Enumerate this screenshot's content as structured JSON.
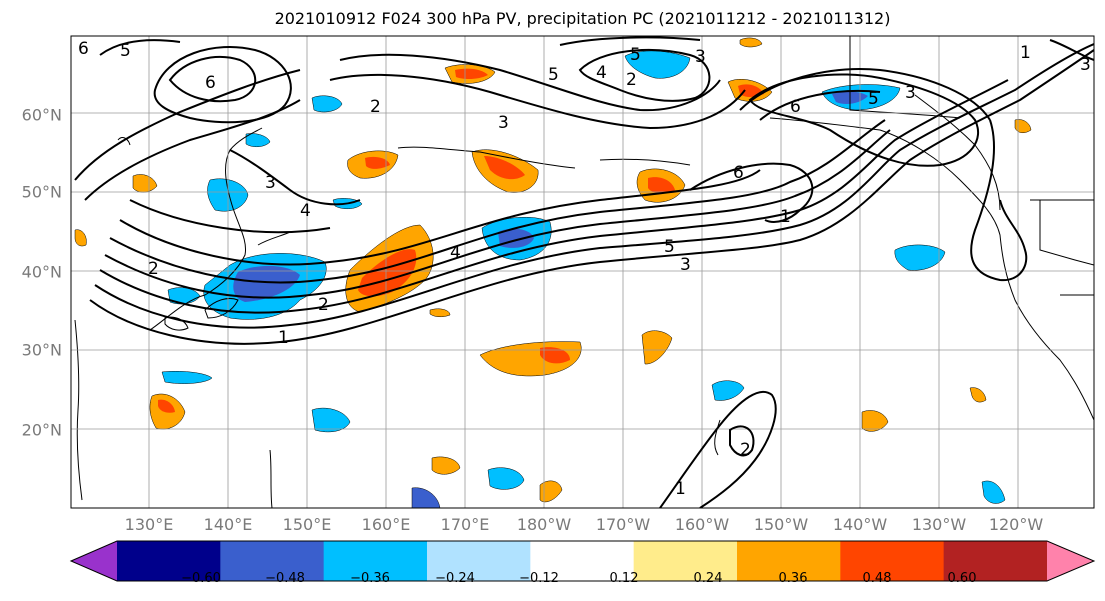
{
  "title": "2021010912 F024 300 hPa PV, precipitation PC (2021011212 - 2021011312)",
  "lat_labels": [
    "60°N",
    "50°N",
    "40°N",
    "30°N",
    "20°N"
  ],
  "lon_labels": [
    "130°E",
    "140°E",
    "150°E",
    "160°E",
    "170°E",
    "180°W",
    "170°W",
    "160°W",
    "150°W",
    "140°W",
    "130°W",
    "120°W"
  ],
  "colorbar": {
    "colors": [
      "#9932cc",
      "#00008b",
      "#3a5fcd",
      "#00bfff",
      "#b0e2ff",
      "#ffffff",
      "#ffec8b",
      "#ffa500",
      "#ff4500",
      "#b22222",
      "#ff82ab"
    ],
    "ticks": [
      "−0.60",
      "−0.48",
      "−0.36",
      "−0.24",
      "−0.12",
      "0.12",
      "0.24",
      "0.36",
      "0.48",
      "0.60"
    ]
  },
  "pv_contour_labels": [
    "1",
    "2",
    "3",
    "4",
    "5",
    "6",
    "5",
    "2",
    "3",
    "3",
    "4",
    "1",
    "2",
    "3",
    "1",
    "5",
    "6",
    "5",
    "3",
    "4",
    "5",
    "6",
    "2",
    "1",
    "2",
    "3",
    "6"
  ]
}
